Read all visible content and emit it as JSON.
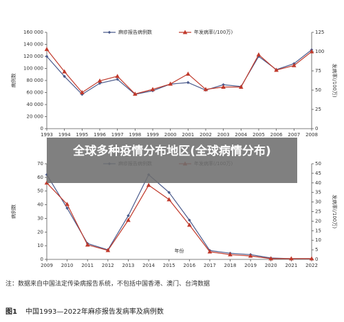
{
  "chart_data": [
    {
      "type": "line",
      "categories": [
        "1993",
        "1994",
        "1995",
        "1996",
        "1997",
        "1998",
        "1999",
        "2000",
        "2001",
        "2002",
        "2003",
        "2004",
        "2005",
        "2006",
        "2007",
        "2008"
      ],
      "series": [
        {
          "name": "麻疹报告病例数",
          "color": "#4a5a8c",
          "marker": "diamond",
          "values": [
            120000,
            86800,
            57000,
            75400,
            82000,
            57000,
            63000,
            74000,
            76600,
            64000,
            73000,
            70000,
            120000,
            98000,
            108000,
            131000
          ]
        },
        {
          "name": "年发病率(/100万)",
          "color": "#c0392b",
          "marker": "triangle",
          "axis": "y2",
          "values": [
            103,
            74,
            47,
            62,
            68,
            45,
            51,
            58,
            71,
            51,
            54,
            54,
            96,
            76,
            82,
            100
          ]
        }
      ],
      "ylabel": "病例数",
      "y2label": "发病率(/100万)",
      "ylim": [
        0,
        160000
      ],
      "yticks": [
        0,
        {
          "value": 20000,
          "label": "20 000"
        },
        {
          "value": 40000,
          "label": "40 000"
        },
        {
          "value": 60000,
          "label": "60 000"
        },
        {
          "value": 80000,
          "label": "80 000"
        },
        {
          "value": 100000,
          "label": "100 000"
        },
        {
          "value": 120000,
          "label": "120 000"
        },
        {
          "value": 140000,
          "label": "140 000"
        },
        {
          "value": 160000,
          "label": "160 000"
        }
      ],
      "y2lim": [
        0,
        125
      ],
      "y2ticks": [
        0,
        25,
        50,
        75,
        100,
        125
      ],
      "legend": "top"
    },
    {
      "type": "line",
      "categories": [
        "2009",
        "2010",
        "2011",
        "2012",
        "2013",
        "2014",
        "2015",
        "2016",
        "2017",
        "2018",
        "2019",
        "2020",
        "2021",
        "2022"
      ],
      "series": [
        {
          "name": "麻疹报告病例数",
          "color": "#4a5a8c",
          "marker": "diamond",
          "values": [
            62,
            37.5,
            11.6,
            7,
            32,
            62,
            49,
            28.7,
            6.5,
            4.5,
            3.5,
            1,
            0.5,
            0.5
          ]
        },
        {
          "name": "年发病率(/100万)",
          "color": "#c0392b",
          "marker": "triangle",
          "axis": "y2",
          "values": [
            40,
            28.8,
            7.6,
            4.7,
            20.5,
            38.8,
            31.3,
            18,
            4,
            2.5,
            1.8,
            0.4,
            0.4,
            0.4
          ]
        }
      ],
      "ylabel": "病例数",
      "y2label": "发病率(/100万)",
      "xlabel": "年份",
      "ylim": [
        0,
        70
      ],
      "yticks": [
        0,
        10,
        20,
        30,
        40,
        50,
        60,
        70
      ],
      "y2lim": [
        0,
        50
      ],
      "y2ticks": [
        0,
        5,
        10,
        15,
        20,
        25,
        30,
        35,
        40,
        45,
        50
      ],
      "legend": "top"
    }
  ],
  "banner": "全球多种疫情分布地区(全球病情分布)",
  "note": "注：数据来自中国法定传染病报告系统，不包括中国香港、澳门、台湾数据",
  "caption": {
    "label": "图1",
    "text": "中国1993—2022年麻疹报告发病率及病例数"
  }
}
